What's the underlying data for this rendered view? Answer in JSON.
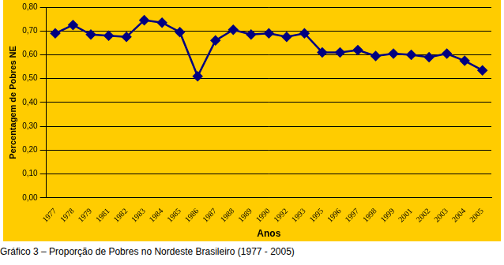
{
  "chart_data": {
    "type": "line",
    "title": "Gráfico 3 – Proporção de Pobres no Nordeste Brasileiro (1977 - 2005)",
    "x_label": "Anos",
    "y_label": "Percentagem de Pobres NE",
    "categories": [
      "1977",
      "1978",
      "1979",
      "1981",
      "1982",
      "1983",
      "1984",
      "1985",
      "1986",
      "1987",
      "1988",
      "1989",
      "1990",
      "1992",
      "1993",
      "1995",
      "1996",
      "1997",
      "1998",
      "1999",
      "2001",
      "2002",
      "2003",
      "2004",
      "2005"
    ],
    "values": [
      0.69,
      0.725,
      0.685,
      0.68,
      0.675,
      0.745,
      0.735,
      0.695,
      0.51,
      0.66,
      0.705,
      0.685,
      0.69,
      0.675,
      0.69,
      0.61,
      0.61,
      0.62,
      0.595,
      0.605,
      0.6,
      0.59,
      0.605,
      0.575,
      0.535
    ],
    "color": "#000080",
    "marker": "diamond",
    "line_style": "solid",
    "ylim": [
      0,
      0.8
    ],
    "yticks": [
      {
        "value": 0,
        "label": "0,00"
      },
      {
        "value": 0.1,
        "label": "0,10"
      },
      {
        "value": 0.2,
        "label": "0,20"
      },
      {
        "value": 0.3,
        "label": "0,30"
      },
      {
        "value": 0.4,
        "label": "0,40"
      },
      {
        "value": 0.5,
        "label": "0,50"
      },
      {
        "value": 0.6,
        "label": "0,60"
      },
      {
        "value": 0.7,
        "label": "0,70"
      },
      {
        "value": 0.8,
        "label": "0,80"
      }
    ],
    "grid": true
  }
}
